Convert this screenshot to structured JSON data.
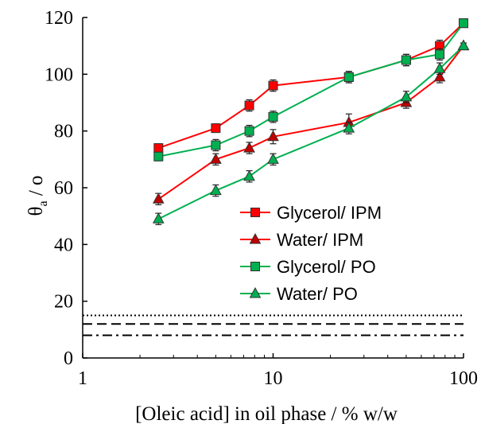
{
  "chart_data": {
    "type": "line",
    "x_scale": "log",
    "xlim": [
      1,
      100
    ],
    "ylim": [
      0,
      120
    ],
    "xlabel": "[Oleic acid] in oil phase / % w/w",
    "ylabel_main": "θ",
    "ylabel_sub": "a",
    "ylabel_rest": " / o",
    "x_ticks": [
      {
        "value": 1,
        "label": "1"
      },
      {
        "value": 10,
        "label": "10"
      },
      {
        "value": 100,
        "label": "100"
      }
    ],
    "y_ticks": [
      {
        "value": 0,
        "label": "0"
      },
      {
        "value": 20,
        "label": "20"
      },
      {
        "value": 40,
        "label": "40"
      },
      {
        "value": 60,
        "label": "60"
      },
      {
        "value": 80,
        "label": "80"
      },
      {
        "value": 100,
        "label": "100"
      },
      {
        "value": 120,
        "label": "120"
      }
    ],
    "grid": false,
    "legend_position": "middle-right",
    "series": [
      {
        "name": "Glycerol/ IPM",
        "color": "#ff0000",
        "marker": "square",
        "marker_color": "#ff0000",
        "x": [
          2.5,
          5,
          7.5,
          10,
          25,
          50,
          75,
          100
        ],
        "y": [
          74,
          81,
          89,
          96,
          99,
          105,
          110,
          118
        ],
        "err": [
          1.5,
          1.5,
          2,
          2,
          2,
          2,
          2,
          1
        ]
      },
      {
        "name": "Water/ IPM",
        "color": "#ff0000",
        "marker": "triangle",
        "marker_color": "#c00000",
        "x": [
          2.5,
          5,
          7.5,
          10,
          25,
          50,
          75,
          100
        ],
        "y": [
          56,
          70,
          74,
          78,
          83,
          90,
          99,
          110
        ],
        "err": [
          2,
          2,
          2,
          2.5,
          3,
          2,
          2,
          1
        ]
      },
      {
        "name": "Glycerol/ PO",
        "color": "#00b050",
        "marker": "square",
        "marker_color": "#00b050",
        "x": [
          2.5,
          5,
          7.5,
          10,
          25,
          50,
          75,
          100
        ],
        "y": [
          71,
          75,
          80,
          85,
          99,
          105,
          107,
          118
        ],
        "err": [
          1.5,
          2,
          2,
          2,
          2,
          2,
          2,
          1
        ]
      },
      {
        "name": "Water/ PO",
        "color": "#00b050",
        "marker": "triangle",
        "marker_color": "#00b050",
        "x": [
          2.5,
          5,
          7.5,
          10,
          25,
          50,
          75,
          100
        ],
        "y": [
          49,
          59,
          64,
          70,
          81,
          92,
          102,
          110
        ],
        "err": [
          2,
          2,
          2,
          2,
          2,
          2,
          2,
          1
        ]
      }
    ],
    "reference_lines": [
      {
        "y": 15,
        "style": "dotted"
      },
      {
        "y": 12,
        "style": "dashed"
      },
      {
        "y": 8,
        "style": "dashdot"
      }
    ]
  }
}
